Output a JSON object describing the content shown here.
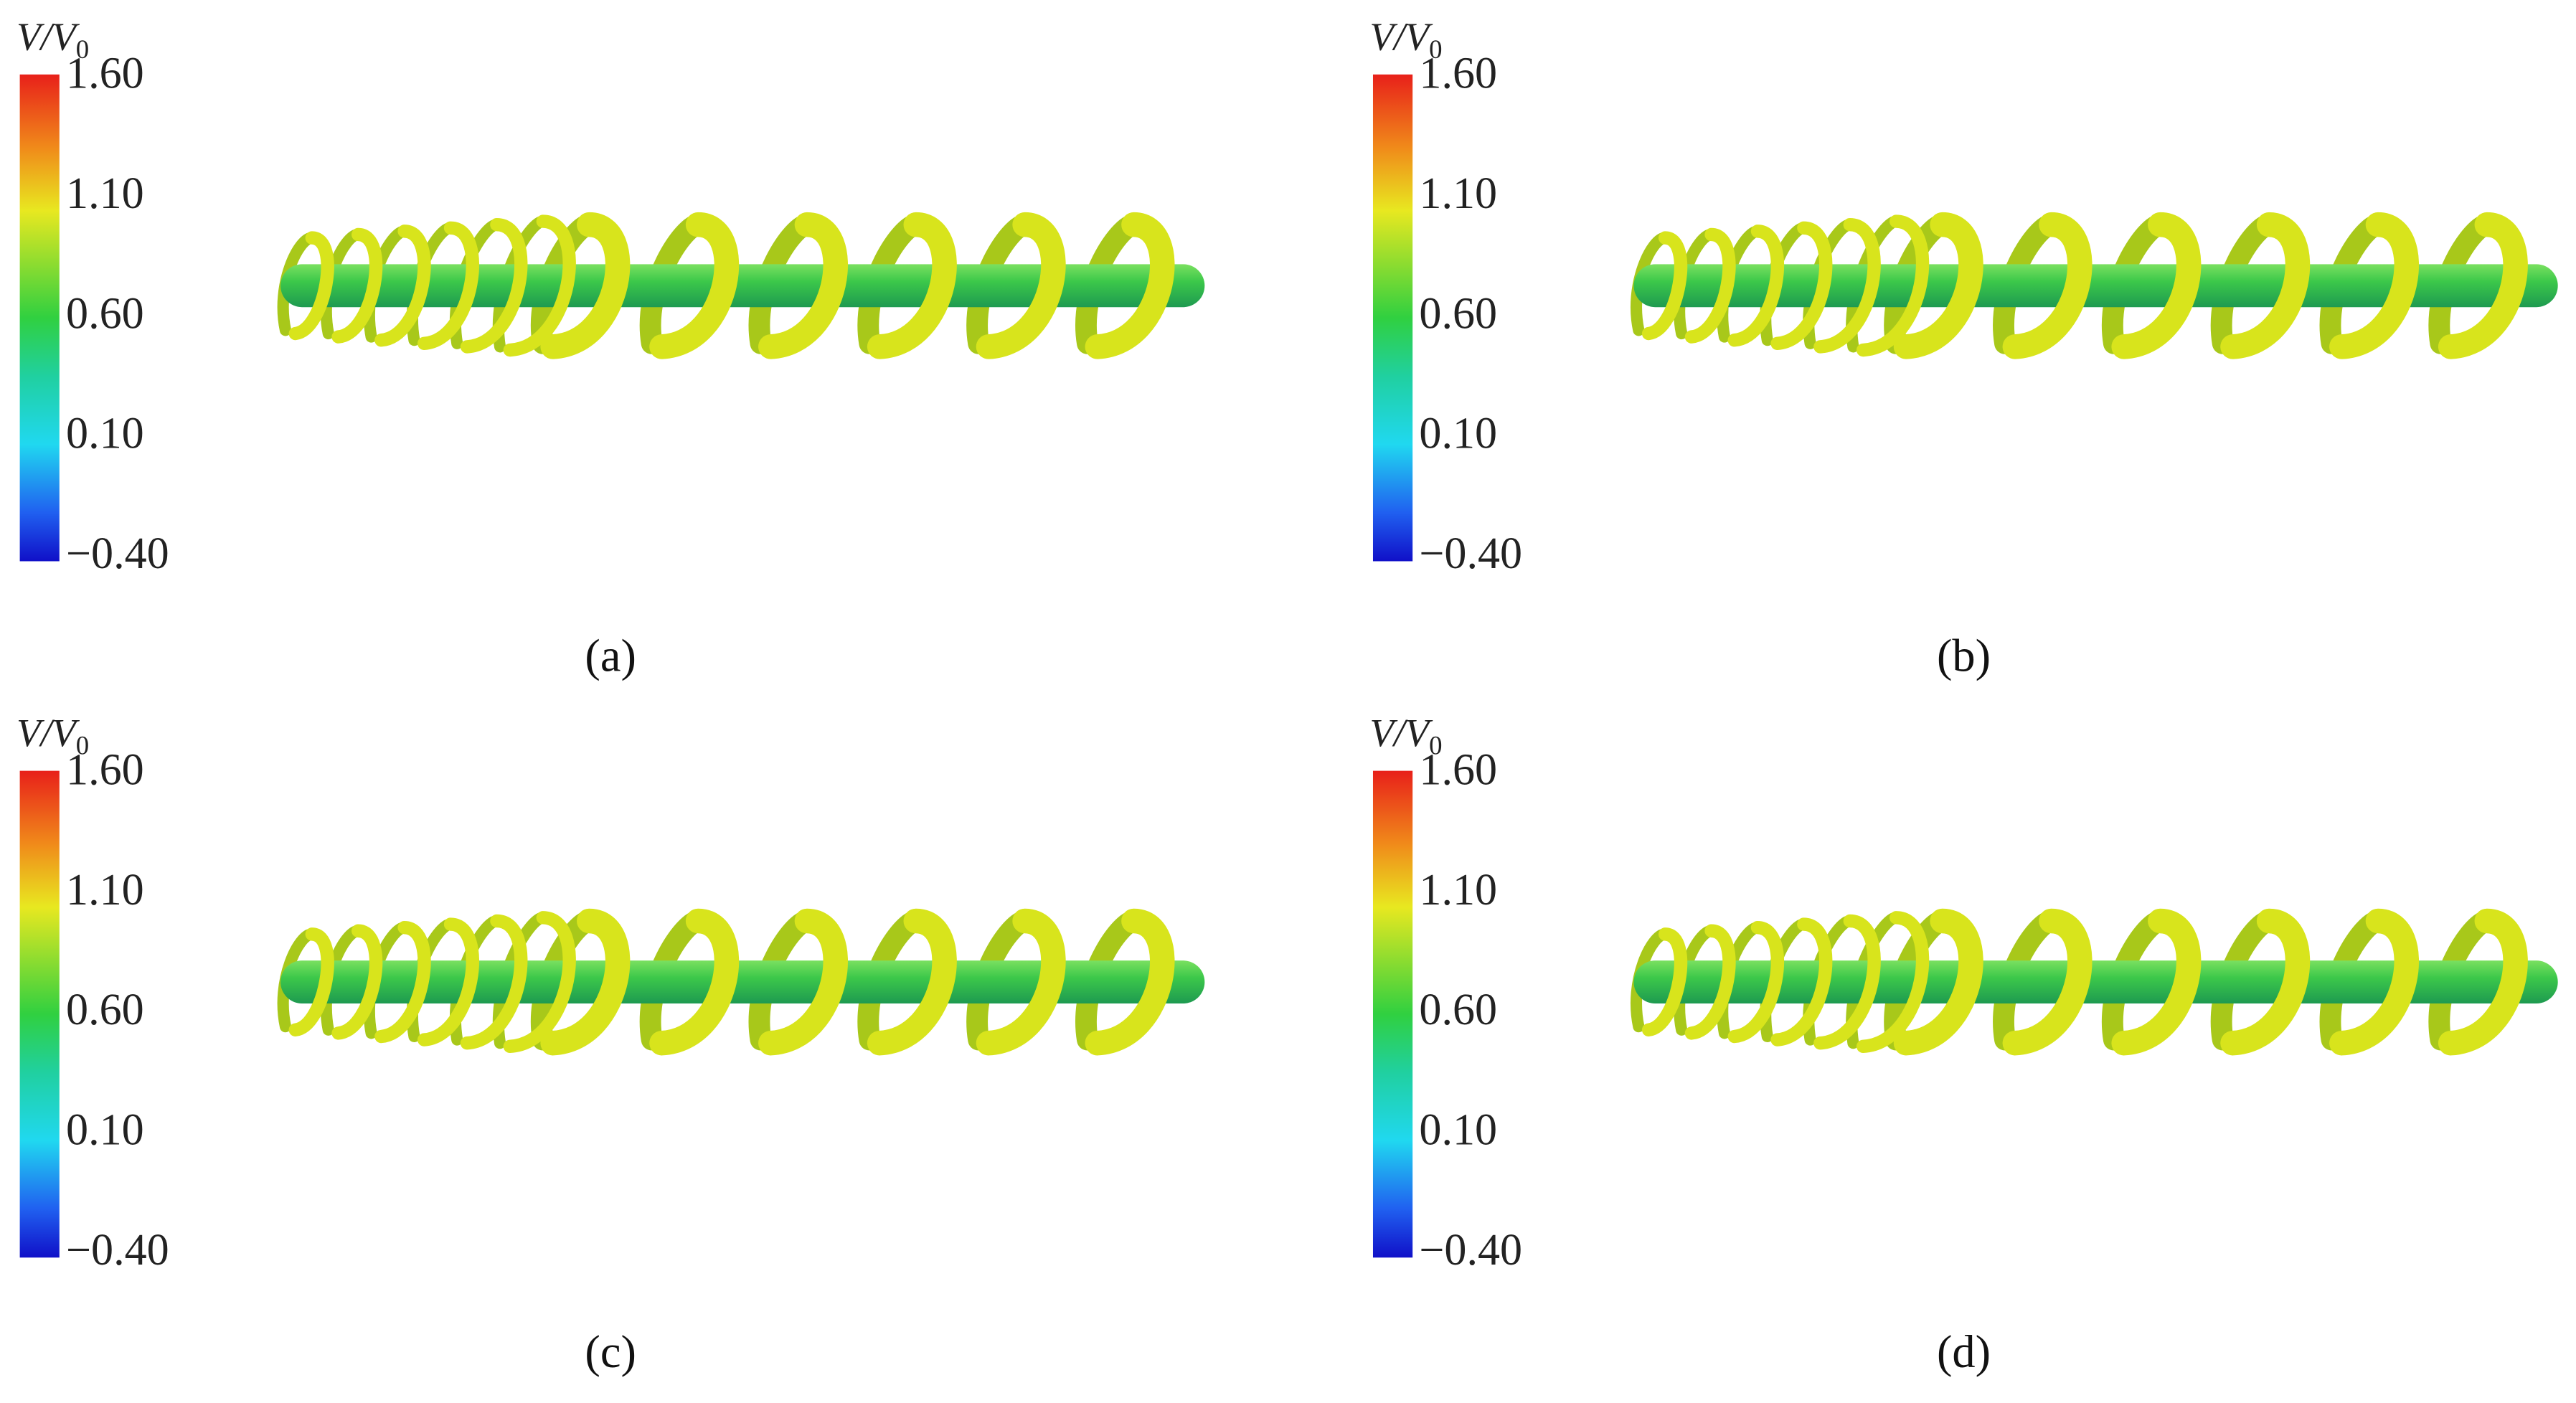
{
  "panels": [
    {
      "label": "(a)",
      "colorbar": {
        "title": "V/V",
        "title_sub": "0",
        "ticks": [
          "1.60",
          "1.10",
          "0.60",
          "0.10",
          "−0.40"
        ]
      }
    },
    {
      "label": "(b)",
      "colorbar": {
        "title": "V/V",
        "title_sub": "0",
        "ticks": [
          "1.60",
          "1.10",
          "0.60",
          "0.10",
          "−0.40"
        ]
      }
    },
    {
      "label": "(c)",
      "colorbar": {
        "title": "V/V",
        "title_sub": "0",
        "ticks": [
          "1.60",
          "1.10",
          "0.60",
          "0.10",
          "−0.40"
        ]
      }
    },
    {
      "label": "(d)",
      "colorbar": {
        "title": "V/V",
        "title_sub": "0",
        "ticks": [
          "1.60",
          "1.10",
          "0.60",
          "0.10",
          "−0.40"
        ]
      }
    }
  ]
}
